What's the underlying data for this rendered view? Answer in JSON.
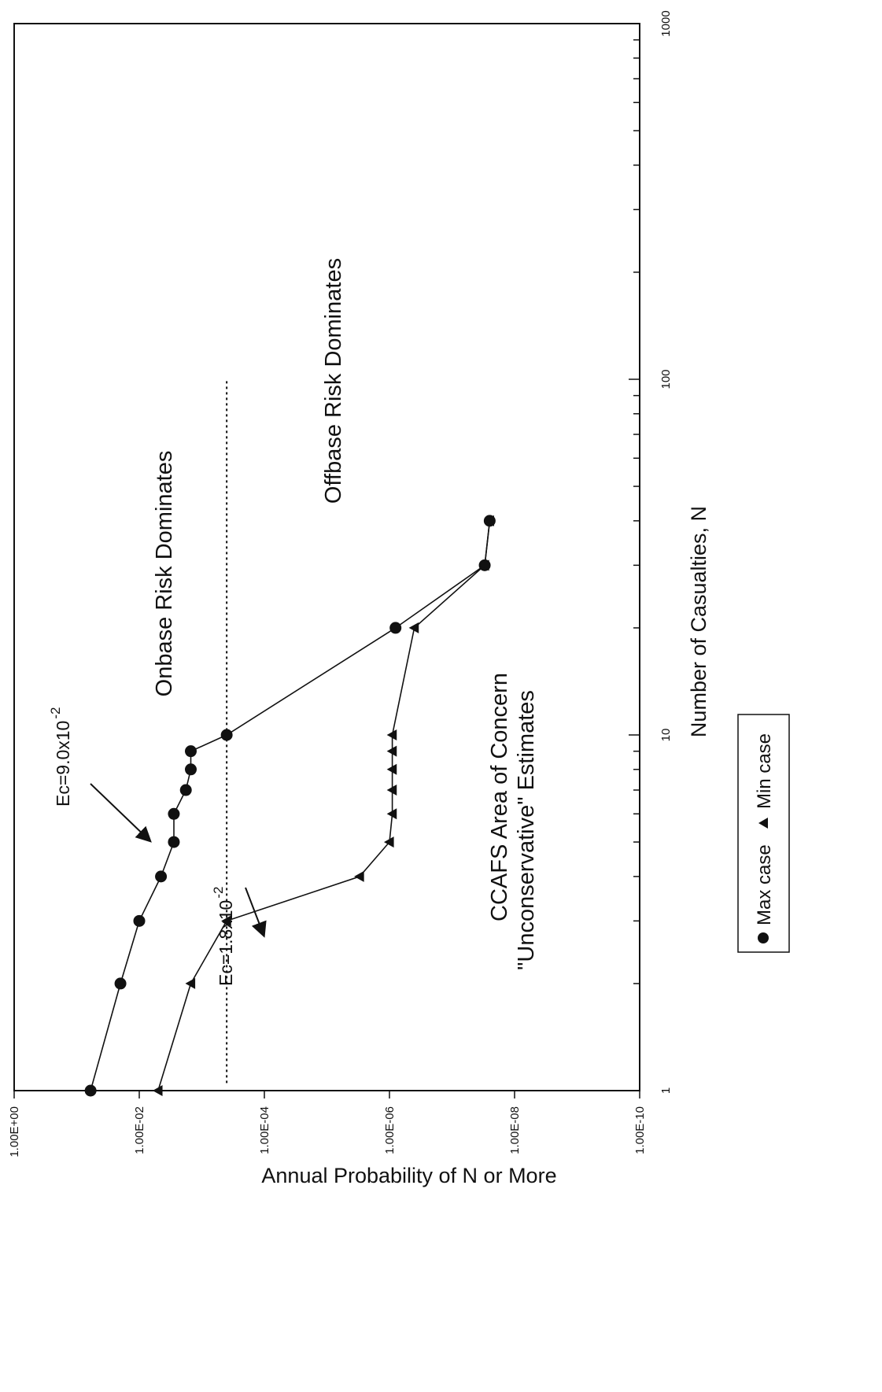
{
  "chart_data": {
    "type": "line",
    "orientation": "rotated 90 degrees counter-clockwise",
    "xlabel": "Number of Casualties, N",
    "ylabel": "Annual Probability of N or More",
    "x_scale": "log",
    "y_scale": "log",
    "xlim": [
      1,
      1000
    ],
    "ylim": [
      1e-10,
      1
    ],
    "x_ticks": [
      {
        "value": 1,
        "label": "1"
      },
      {
        "value": 10,
        "label": "10"
      },
      {
        "value": 100,
        "label": "100"
      },
      {
        "value": 1000,
        "label": "1000"
      }
    ],
    "y_ticks": [
      {
        "value": 1,
        "label": "1.00E+00"
      },
      {
        "value": 0.01,
        "label": "1.00E-02"
      },
      {
        "value": 0.0001,
        "label": "1.00E-04"
      },
      {
        "value": 1e-06,
        "label": "1.00E-06"
      },
      {
        "value": 1e-08,
        "label": "1.00E-08"
      },
      {
        "value": 1e-10,
        "label": "1.00E-10"
      }
    ],
    "grid": false,
    "legend_position": "bottom-right",
    "series": [
      {
        "name": "Max case",
        "marker": "circle",
        "points": [
          {
            "x": 1,
            "y": 0.06
          },
          {
            "x": 2,
            "y": 0.02
          },
          {
            "x": 3,
            "y": 0.01
          },
          {
            "x": 4,
            "y": 0.0045
          },
          {
            "x": 5,
            "y": 0.0028
          },
          {
            "x": 6,
            "y": 0.0028
          },
          {
            "x": 7,
            "y": 0.0018
          },
          {
            "x": 8,
            "y": 0.0015
          },
          {
            "x": 9,
            "y": 0.0015
          },
          {
            "x": 10,
            "y": 0.0004
          },
          {
            "x": 20,
            "y": 8e-07
          },
          {
            "x": 30,
            "y": 3e-08
          },
          {
            "x": 40,
            "y": 2.5e-08
          }
        ]
      },
      {
        "name": "Min case",
        "marker": "triangle",
        "points": [
          {
            "x": 1,
            "y": 0.005
          },
          {
            "x": 2,
            "y": 0.0015
          },
          {
            "x": 3,
            "y": 0.0004
          },
          {
            "x": 4,
            "y": 3e-06
          },
          {
            "x": 5,
            "y": 1e-06
          },
          {
            "x": 6,
            "y": 9e-07
          },
          {
            "x": 7,
            "y": 9e-07
          },
          {
            "x": 8,
            "y": 9e-07
          },
          {
            "x": 9,
            "y": 9e-07
          },
          {
            "x": 10,
            "y": 9e-07
          },
          {
            "x": 20,
            "y": 4e-07
          },
          {
            "x": 30,
            "y": 3e-08
          },
          {
            "x": 40,
            "y": 2.5e-08
          }
        ]
      }
    ],
    "reference_line": {
      "style": "dotted",
      "y": 0.0004,
      "x_range": [
        1.05,
        100
      ]
    },
    "annotations": [
      {
        "text": "Onbase Risk Dominates"
      },
      {
        "text": "Offbase Risk Dominates"
      },
      {
        "text": "CCAFS Area of Concern"
      },
      {
        "text": "\"Unconservative\" Estimates"
      },
      {
        "text": "Ec=9.0x10",
        "superscript": "-2"
      },
      {
        "text": "Ec=1.8x10",
        "superscript": "-2"
      }
    ]
  }
}
